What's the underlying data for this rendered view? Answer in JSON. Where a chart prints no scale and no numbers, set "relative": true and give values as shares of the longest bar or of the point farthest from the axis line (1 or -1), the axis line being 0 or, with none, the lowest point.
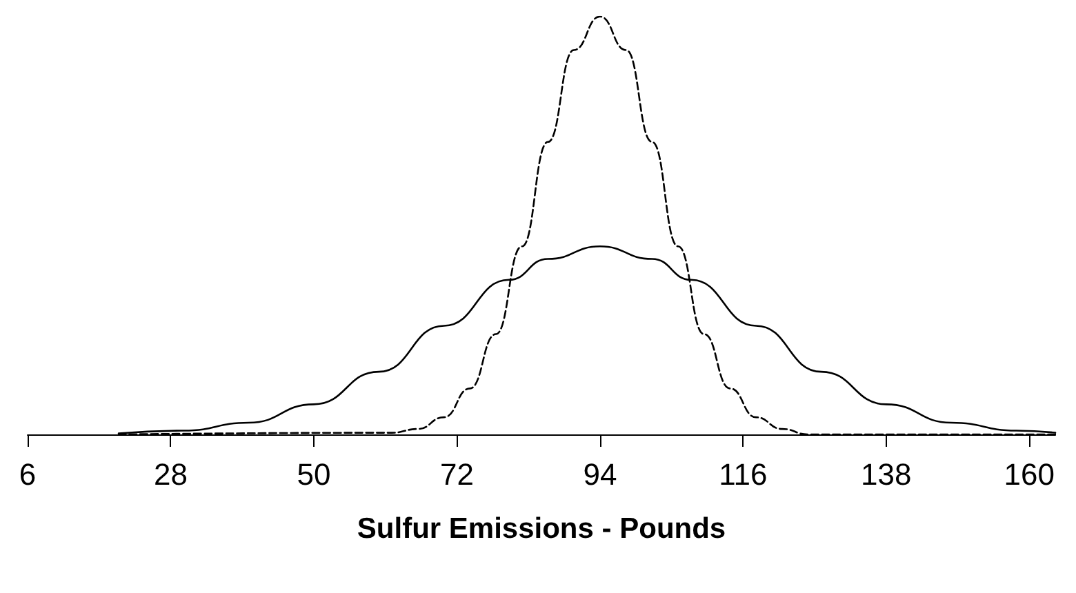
{
  "chart_data": {
    "type": "line",
    "relative": true,
    "xlabel": "Sulfur Emissions - Pounds",
    "xlim": [
      6,
      164
    ],
    "xticks": [
      6,
      28,
      50,
      72,
      94,
      116,
      138,
      160
    ],
    "grid": false,
    "marker": "none",
    "series": [
      {
        "color": "#000000",
        "line_style": "solid",
        "x": [
          20,
          30,
          40,
          50,
          60,
          70,
          80,
          86,
          94,
          102,
          108,
          118,
          128,
          138,
          148,
          158,
          164
        ],
        "values": [
          0.0025,
          0.009,
          0.028,
          0.072,
          0.15,
          0.26,
          0.37,
          0.42,
          0.45,
          0.42,
          0.37,
          0.26,
          0.15,
          0.072,
          0.028,
          0.009,
          0.004
        ]
      },
      {
        "color": "#000000",
        "line_style": "dashed",
        "x": [
          20,
          62,
          66,
          70,
          74,
          78,
          82,
          86,
          90,
          94,
          98,
          102,
          106,
          110,
          114,
          118,
          122,
          126,
          164
        ],
        "values": [
          0,
          0.004,
          0.013,
          0.041,
          0.11,
          0.24,
          0.45,
          0.7,
          0.92,
          1,
          0.92,
          0.7,
          0.45,
          0.24,
          0.11,
          0.041,
          0.013,
          0,
          0
        ]
      }
    ]
  }
}
